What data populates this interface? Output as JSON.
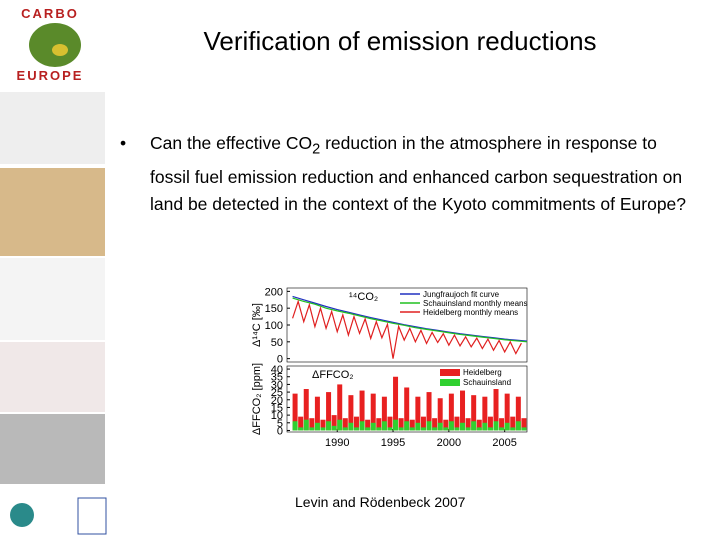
{
  "logo": {
    "top": "CARBO",
    "bottom": "EUROPE"
  },
  "title": "Verification of emission reductions",
  "bullet": {
    "marker": "•",
    "parts": [
      "Can the effective CO",
      "2",
      " reduction in the atmosphere in response to fossil fuel emission reduction and enhanced carbon sequestration on land be detected in the context of the Kyoto commitments of Europe?"
    ]
  },
  "caption": "Levin and Rödenbeck 2007",
  "chart_data": [
    {
      "type": "line",
      "title": "¹⁴CO₂",
      "y_label": "Δ¹⁴C [‰]",
      "xlim": [
        1985.5,
        2007
      ],
      "ylim": [
        -10,
        210
      ],
      "yticks": [
        0,
        50,
        100,
        150,
        200
      ],
      "series": [
        {
          "name": "Jungfraujoch fit curve",
          "color": "#2030c0",
          "x": [
            1986,
            1987,
            1988,
            1989,
            1990,
            1991,
            1992,
            1993,
            1994,
            1995,
            1996,
            1997,
            1998,
            1999,
            2000,
            2001,
            2002,
            2003,
            2004,
            2005,
            2006,
            2007
          ],
          "values": [
            185,
            175,
            165,
            155,
            146,
            138,
            130,
            122,
            115,
            108,
            101,
            95,
            89,
            84,
            79,
            74,
            70,
            66,
            62,
            58,
            55,
            52
          ]
        },
        {
          "name": "Schauinsland monthly means",
          "color": "#20c020",
          "x": [
            1986,
            1987,
            1988,
            1989,
            1990,
            1991,
            1992,
            1993,
            1994,
            1995,
            1996,
            1997,
            1998,
            1999,
            2000,
            2001,
            2002,
            2003,
            2004,
            2005,
            2006,
            2007
          ],
          "values": [
            180,
            170,
            162,
            150,
            142,
            135,
            127,
            119,
            112,
            105,
            99,
            92,
            87,
            82,
            77,
            72,
            68,
            64,
            60,
            56,
            53,
            50
          ]
        },
        {
          "name": "Heidelberg monthly means",
          "color": "#e02020",
          "x": [
            1986,
            1986.5,
            1987,
            1987.5,
            1988,
            1988.5,
            1989,
            1989.5,
            1990,
            1990.5,
            1991,
            1991.5,
            1992,
            1992.5,
            1993,
            1993.5,
            1994,
            1994.5,
            1995,
            1995.5,
            1996,
            1996.5,
            1997,
            1997.5,
            1998,
            1998.5,
            1999,
            1999.5,
            2000,
            2000.5,
            2001,
            2001.5,
            2002,
            2002.5,
            2003,
            2003.5,
            2004,
            2004.5,
            2005,
            2005.5,
            2006,
            2006.5
          ],
          "values": [
            120,
            170,
            110,
            160,
            95,
            150,
            90,
            140,
            80,
            130,
            70,
            125,
            75,
            118,
            60,
            110,
            62,
            102,
            0,
            96,
            55,
            90,
            50,
            84,
            45,
            78,
            48,
            74,
            40,
            70,
            38,
            65,
            35,
            61,
            30,
            58,
            25,
            54,
            20,
            50,
            15,
            46
          ]
        }
      ]
    },
    {
      "type": "bar",
      "title": "ΔFFCO₂",
      "y_label": "ΔFFCO₂ [ppm]",
      "xlim": [
        1985.5,
        2007
      ],
      "xticks": [
        1990,
        1995,
        2000,
        2005
      ],
      "ylim": [
        -1,
        42
      ],
      "yticks": [
        0,
        5,
        10,
        15,
        20,
        25,
        30,
        35,
        40
      ],
      "series": [
        {
          "name": "Heidelberg",
          "color": "#e82020",
          "x": [
            1986,
            1986.5,
            1987,
            1987.5,
            1988,
            1988.5,
            1989,
            1989.5,
            1990,
            1990.5,
            1991,
            1991.5,
            1992,
            1992.5,
            1993,
            1993.5,
            1994,
            1994.5,
            1995,
            1995.5,
            1996,
            1996.5,
            1997,
            1997.5,
            1998,
            1998.5,
            1999,
            1999.5,
            2000,
            2000.5,
            2001,
            2001.5,
            2002,
            2002.5,
            2003,
            2003.5,
            2004,
            2004.5,
            2005,
            2005.5,
            2006,
            2006.5
          ],
          "values": [
            24,
            9,
            27,
            8,
            22,
            7,
            25,
            10,
            30,
            8,
            23,
            9,
            26,
            7,
            24,
            8,
            22,
            9,
            35,
            8,
            28,
            7,
            22,
            9,
            25,
            8,
            21,
            7,
            24,
            9,
            26,
            8,
            23,
            7,
            22,
            9,
            27,
            8,
            24,
            9,
            22,
            8
          ]
        },
        {
          "name": "Schauinsland",
          "color": "#30d030",
          "x": [
            1986,
            1986.5,
            1987,
            1987.5,
            1988,
            1988.5,
            1989,
            1989.5,
            1990,
            1990.5,
            1991,
            1991.5,
            1992,
            1992.5,
            1993,
            1993.5,
            1994,
            1994.5,
            1995,
            1995.5,
            1996,
            1996.5,
            1997,
            1997.5,
            1998,
            1998.5,
            1999,
            1999.5,
            2000,
            2000.5,
            2001,
            2001.5,
            2002,
            2002.5,
            2003,
            2003.5,
            2004,
            2004.5,
            2005,
            2005.5,
            2006,
            2006.5
          ],
          "values": [
            6,
            2,
            7,
            2,
            5,
            2,
            6,
            3,
            7,
            2,
            5,
            2,
            6,
            2,
            5,
            2,
            6,
            2,
            7,
            2,
            6,
            2,
            5,
            2,
            6,
            2,
            5,
            2,
            6,
            2,
            5,
            2,
            6,
            2,
            5,
            2,
            6,
            2,
            5,
            2,
            6,
            2
          ]
        }
      ]
    }
  ]
}
